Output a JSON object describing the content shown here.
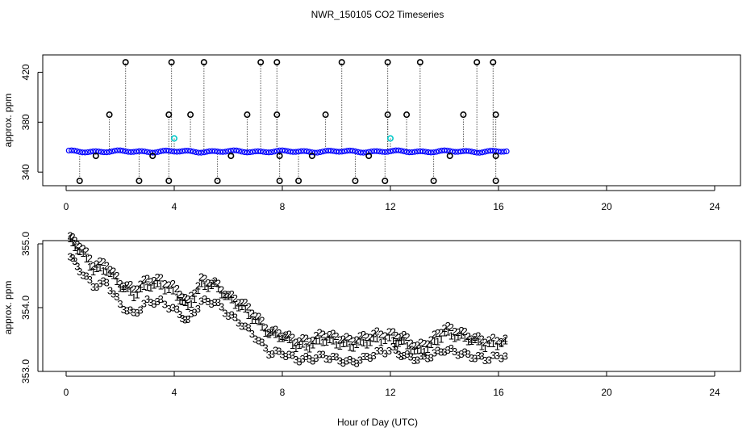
{
  "chart_data": [
    {
      "type": "scatter",
      "panel": "top",
      "title": "NWR_150105  CO2 Timeseries",
      "xlabel": "",
      "ylabel": "approx. ppm",
      "xlim": [
        0,
        24
      ],
      "ylim": [
        333,
        430
      ],
      "xticks": [
        0,
        4,
        8,
        12,
        16,
        20,
        24
      ],
      "yticks": [
        340,
        380,
        420
      ],
      "xtick_labels": [
        "0",
        "4",
        "8",
        "12",
        "16",
        "20",
        "24"
      ],
      "ytick_labels": [
        "340",
        "380",
        "420"
      ],
      "baseline_value": 356.5,
      "marker_glyph": "o",
      "colors": {
        "main": "#0000ff",
        "spike": "#000000",
        "cyan": "#00c8c8"
      },
      "spikes": [
        {
          "x": 0.5,
          "y": 333
        },
        {
          "x": 1.1,
          "y": 353
        },
        {
          "x": 1.6,
          "y": 386
        },
        {
          "x": 2.2,
          "y": 428
        },
        {
          "x": 2.7,
          "y": 333
        },
        {
          "x": 3.2,
          "y": 353
        },
        {
          "x": 3.8,
          "y": 333
        },
        {
          "x": 3.8,
          "y": 386
        },
        {
          "x": 3.9,
          "y": 428
        },
        {
          "x": 4.6,
          "y": 386
        },
        {
          "x": 5.1,
          "y": 428
        },
        {
          "x": 5.6,
          "y": 333
        },
        {
          "x": 6.1,
          "y": 353
        },
        {
          "x": 6.7,
          "y": 386
        },
        {
          "x": 7.2,
          "y": 428
        },
        {
          "x": 7.8,
          "y": 428
        },
        {
          "x": 7.8,
          "y": 386
        },
        {
          "x": 7.9,
          "y": 353
        },
        {
          "x": 7.9,
          "y": 333
        },
        {
          "x": 8.6,
          "y": 333
        },
        {
          "x": 9.1,
          "y": 353
        },
        {
          "x": 9.6,
          "y": 386
        },
        {
          "x": 10.2,
          "y": 428
        },
        {
          "x": 10.7,
          "y": 333
        },
        {
          "x": 11.2,
          "y": 353
        },
        {
          "x": 11.8,
          "y": 333
        },
        {
          "x": 11.9,
          "y": 386
        },
        {
          "x": 11.9,
          "y": 428
        },
        {
          "x": 12.6,
          "y": 386
        },
        {
          "x": 13.1,
          "y": 428
        },
        {
          "x": 13.6,
          "y": 333
        },
        {
          "x": 14.2,
          "y": 353
        },
        {
          "x": 14.7,
          "y": 386
        },
        {
          "x": 15.2,
          "y": 428
        },
        {
          "x": 15.8,
          "y": 428
        },
        {
          "x": 15.9,
          "y": 386
        },
        {
          "x": 15.9,
          "y": 353
        },
        {
          "x": 15.9,
          "y": 333
        }
      ],
      "cyan_points": [
        {
          "x": 4.0,
          "y": 367
        },
        {
          "x": 12.0,
          "y": 367
        }
      ]
    },
    {
      "type": "scatter",
      "panel": "bottom",
      "title": "",
      "xlabel": "Hour of Day (UTC)",
      "ylabel": "approx. ppm",
      "xlim": [
        0,
        24
      ],
      "ylim": [
        353.0,
        355.0
      ],
      "xticks": [
        0,
        4,
        8,
        12,
        16,
        20,
        24
      ],
      "yticks": [
        353.0,
        354.0,
        355.0
      ],
      "xtick_labels": [
        "0",
        "4",
        "8",
        "12",
        "16",
        "20",
        "24"
      ],
      "ytick_labels": [
        "353.0",
        "354.0",
        "355.0"
      ],
      "series": [
        {
          "name": "1",
          "glyph": "1",
          "color": "#ff0000"
        },
        {
          "name": "2",
          "glyph": "2",
          "color": "#00cc00"
        },
        {
          "name": "3",
          "glyph": "3",
          "color": "#0000ff"
        }
      ],
      "x": [
        0.15,
        0.5,
        1.0,
        1.5,
        2.0,
        2.5,
        3.0,
        3.5,
        4.1,
        4.5,
        5.0,
        5.5,
        6.0,
        6.5,
        7.0,
        7.5,
        8.0,
        8.5,
        9.0,
        9.5,
        10.0,
        10.5,
        11.0,
        11.5,
        12.1,
        12.5,
        13.0,
        13.5,
        14.0,
        14.5,
        15.0,
        15.5,
        16.1
      ],
      "series_1_values": [
        355.05,
        354.9,
        354.6,
        354.6,
        354.35,
        354.2,
        354.35,
        354.35,
        354.2,
        354.0,
        354.35,
        354.35,
        354.15,
        354.0,
        353.8,
        353.6,
        353.55,
        353.4,
        353.4,
        353.5,
        353.45,
        353.4,
        353.45,
        353.5,
        353.5,
        353.45,
        353.3,
        353.4,
        353.6,
        353.55,
        353.5,
        353.4,
        353.45
      ],
      "series_2_values": [
        355.1,
        355.0,
        354.7,
        354.7,
        354.4,
        354.3,
        354.45,
        354.45,
        354.3,
        354.1,
        354.45,
        354.4,
        354.2,
        354.1,
        353.9,
        353.65,
        353.6,
        353.5,
        353.5,
        353.6,
        353.55,
        353.5,
        353.55,
        353.6,
        353.6,
        353.55,
        353.4,
        353.5,
        353.7,
        353.65,
        353.55,
        353.5,
        353.5
      ],
      "series_3_values": [
        354.8,
        354.6,
        354.35,
        354.4,
        354.05,
        353.9,
        354.1,
        354.1,
        353.95,
        353.8,
        354.1,
        354.1,
        353.9,
        353.75,
        353.55,
        353.3,
        353.3,
        353.2,
        353.2,
        353.25,
        353.2,
        353.15,
        353.2,
        353.3,
        353.35,
        353.25,
        353.2,
        353.25,
        353.35,
        353.3,
        353.25,
        353.2,
        353.25
      ]
    }
  ]
}
